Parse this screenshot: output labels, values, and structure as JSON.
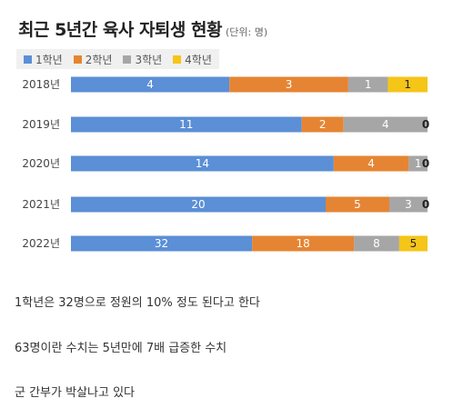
{
  "chart_data": {
    "type": "bar",
    "orientation": "horizontal",
    "stacked": true,
    "title": "최근 5년간 육사 자퇴생 현황",
    "unit": "(단위: 명)",
    "categories": [
      "2018년",
      "2019년",
      "2020년",
      "2021년",
      "2022년"
    ],
    "series": [
      {
        "name": "1학년",
        "color": "#5b8fd6",
        "values": [
          4,
          11,
          14,
          20,
          32
        ]
      },
      {
        "name": "2학년",
        "color": "#e58533",
        "values": [
          3,
          2,
          4,
          5,
          18
        ]
      },
      {
        "name": "3학년",
        "color": "#a6a6a6",
        "values": [
          1,
          4,
          1,
          3,
          8
        ]
      },
      {
        "name": "4학년",
        "color": "#f5c518",
        "values": [
          1,
          0,
          0,
          0,
          5
        ]
      }
    ],
    "label_colors": [
      "#ffffff",
      "#ffffff",
      "#ffffff",
      "#222222"
    ],
    "legend_position": "top-left",
    "grid": false
  },
  "notes": [
    "1학년은 32명으로 정원의 10% 정도 된다고 한다",
    "63명이란 수치는 5년만에 7배 급증한 수치",
    "군 간부가 박살나고 있다"
  ]
}
